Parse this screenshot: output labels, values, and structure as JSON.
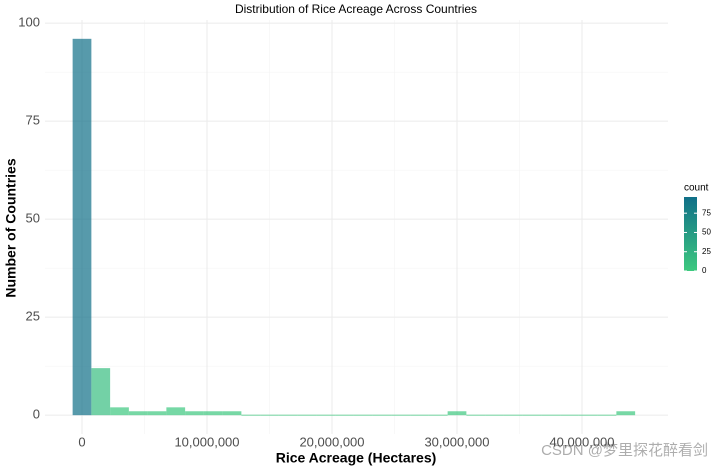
{
  "chart_data": {
    "type": "histogram",
    "title": "Distribution of Rice Acreage Across Countries",
    "x_label": "Rice Acreage (Hectares)",
    "y_label": "Number of Countries",
    "bins": [
      -750000,
      750000,
      2250000,
      3750000,
      5250000,
      6750000,
      8250000,
      9750000,
      11250000,
      12750000,
      14250000,
      15750000,
      17250000,
      18750000,
      20250000,
      21750000,
      23250000,
      24750000,
      26250000,
      27750000,
      29250000,
      30750000,
      32250000,
      33750000,
      35250000,
      36750000,
      38250000,
      39750000,
      41250000,
      42750000,
      44250000
    ],
    "values": [
      96,
      12,
      2,
      1,
      1,
      2,
      1,
      1,
      1,
      0,
      0,
      0,
      0,
      0,
      0,
      0,
      0,
      0,
      0,
      0,
      1,
      0,
      0,
      0,
      0,
      0,
      0,
      0,
      0,
      1
    ],
    "fill_low": "#3dc97f",
    "fill_high": "#106f88",
    "alpha": 0.7,
    "xlim": [
      -2960000,
      46880000
    ],
    "xticks": [
      0,
      {
        "value": 10000000,
        "label": "10,000,000"
      },
      {
        "value": 20000000,
        "label": "20,000,000"
      },
      {
        "value": 30000000,
        "label": "30,000,000"
      },
      {
        "value": 40000000,
        "label": "40,000,000"
      }
    ],
    "ylim": [
      -4.8,
      100.8
    ],
    "yticks": [
      0,
      25,
      50,
      75,
      100
    ],
    "grid": true,
    "legend": {
      "title": "count",
      "ticks": [
        0,
        25,
        50,
        75
      ],
      "limits": [
        0,
        96
      ]
    },
    "watermark": "CSDN @梦里探花醉看剑"
  }
}
